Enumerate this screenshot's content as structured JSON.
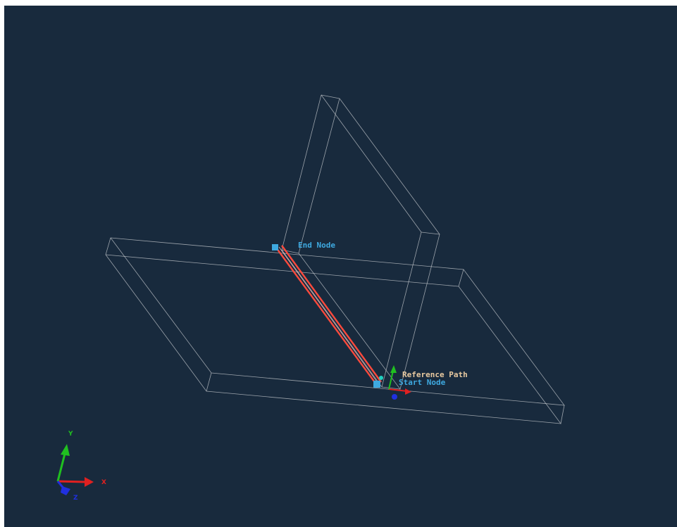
{
  "viewport": {
    "background": "#182a3d",
    "wireframe_color": "#c8ccd0"
  },
  "labels": {
    "end_node": "End Node",
    "start_node": "Start Node",
    "reference_path": "Reference Path",
    "node_color": "#3ea9e0",
    "reference_color": "#e8c9a0"
  },
  "weld_path": {
    "color": "#ff4a3d"
  },
  "triad_reference": {
    "x_color": "#e02020",
    "y_color": "#20c020",
    "z_color": "#2030e0"
  },
  "triad_global": {
    "x_label": "X",
    "y_label": "Y",
    "z_label": "Z",
    "x_color": "#e02020",
    "y_color": "#20c020",
    "z_color": "#2030e0"
  }
}
